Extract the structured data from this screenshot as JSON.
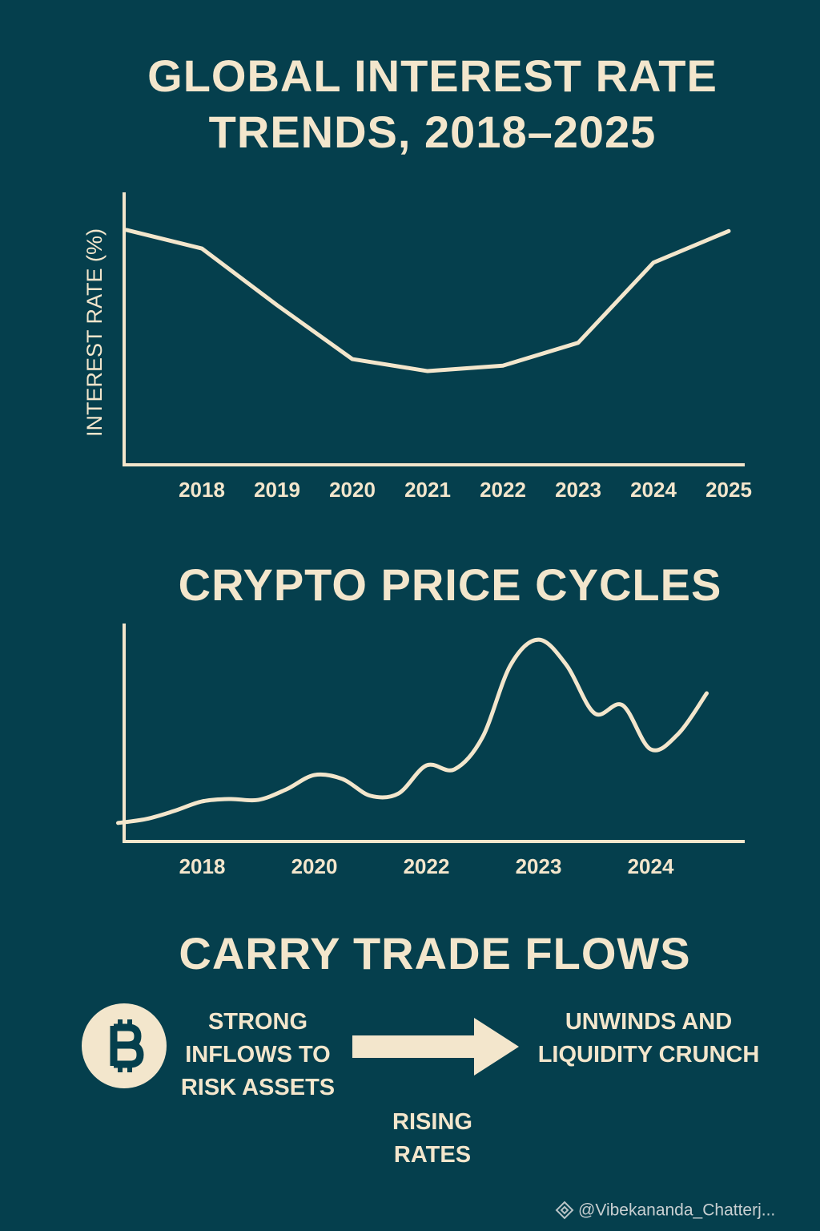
{
  "chart_data": [
    {
      "type": "line",
      "title": "GLOBAL INTEREST RATE TRENDS, 2018–2025",
      "y_label": "INTEREST RATE (%)",
      "categories": [
        null,
        "2018",
        "2019",
        "2020",
        "2021",
        "2022",
        "2023",
        "2024",
        "2025"
      ],
      "values": [
        4.31,
        3.97,
        2.93,
        1.94,
        1.72,
        1.82,
        2.24,
        3.71,
        4.29
      ],
      "color": "#f3e6cc",
      "ylim": [
        0,
        5
      ]
    },
    {
      "type": "line",
      "title": "CRYPTO PRICE CYCLES",
      "smooth": true,
      "categories": [
        null,
        null,
        null,
        "2018",
        null,
        null,
        null,
        "2020",
        null,
        null,
        null,
        "2022",
        null,
        null,
        null,
        "2023",
        null,
        null,
        null,
        "2024",
        null,
        null
      ],
      "values": [
        8.5,
        10.3,
        14,
        18.4,
        19.5,
        19.1,
        23.9,
        30.5,
        28.7,
        21,
        22,
        34.9,
        33.1,
        47.8,
        80.9,
        92.6,
        80.9,
        58.8,
        62.5,
        42.3,
        49.6,
        68
      ],
      "color": "#f3e6cc",
      "ylim": [
        0,
        100
      ]
    }
  ],
  "flow": {
    "title": "CARRY TRADE FLOWS",
    "left": "STRONG INFLOWS TO RISK ASSETS",
    "arrow_label": "RISING RATES",
    "right": "UNWINDS AND LIQUIDITY CRUNCH"
  },
  "watermark": "@Vibekananda_Chatterj..."
}
